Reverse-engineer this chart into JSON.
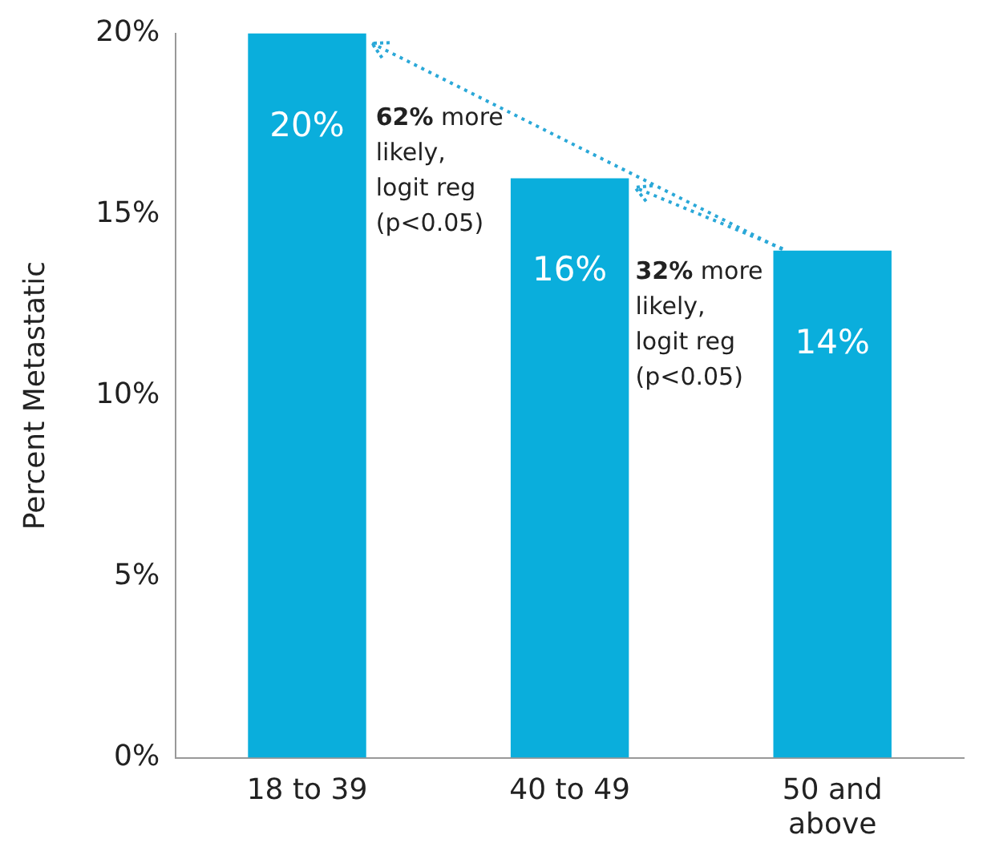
{
  "chart_data": {
    "type": "bar",
    "ylabel": "Percent Metastatic",
    "categories": [
      "18 to 39",
      "40 to 49",
      "50 and above"
    ],
    "values": [
      20,
      16,
      14
    ],
    "value_labels": [
      "20%",
      "16%",
      "14%"
    ],
    "color": "#0aaedc",
    "ylim": [
      0,
      20
    ],
    "yticks": [
      {
        "value": 0,
        "label": "0%"
      },
      {
        "value": 5,
        "label": "5%"
      },
      {
        "value": 10,
        "label": "10%"
      },
      {
        "value": 15,
        "label": "15%"
      },
      {
        "value": 20,
        "label": "20%"
      }
    ],
    "grid": false,
    "legend": false,
    "annotations": [
      "62% more likely, logit reg (p<0.05)",
      {
        "text": "32% more likely, logit reg (p<0.05)",
        "x": "50 and above",
        "y": 14
      }
    ]
  }
}
